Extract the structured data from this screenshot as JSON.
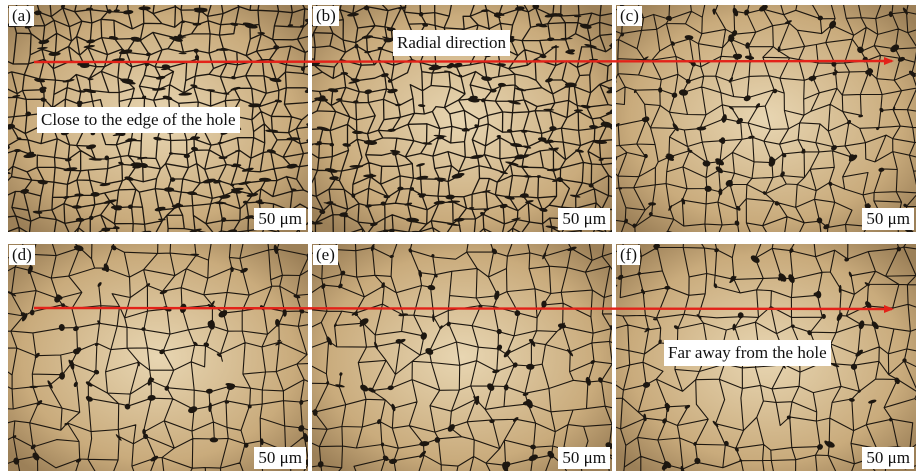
{
  "panels": [
    {
      "id": "a",
      "label": "(a)",
      "scale": "50 μm"
    },
    {
      "id": "b",
      "label": "(b)",
      "scale": "50 μm"
    },
    {
      "id": "c",
      "label": "(c)",
      "scale": "50 μm"
    },
    {
      "id": "d",
      "label": "(d)",
      "scale": "50 μm"
    },
    {
      "id": "e",
      "label": "(e)",
      "scale": "50 μm"
    },
    {
      "id": "f",
      "label": "(f)",
      "scale": "50 μm"
    }
  ],
  "annotations": {
    "radial": "Radial direction",
    "close": "Close to the edge of the hole",
    "far": "Far away from the hole"
  },
  "colors": {
    "grain": "#c9ab7c",
    "grain_boundary": "#1d1710",
    "arrow": "#e32219"
  }
}
